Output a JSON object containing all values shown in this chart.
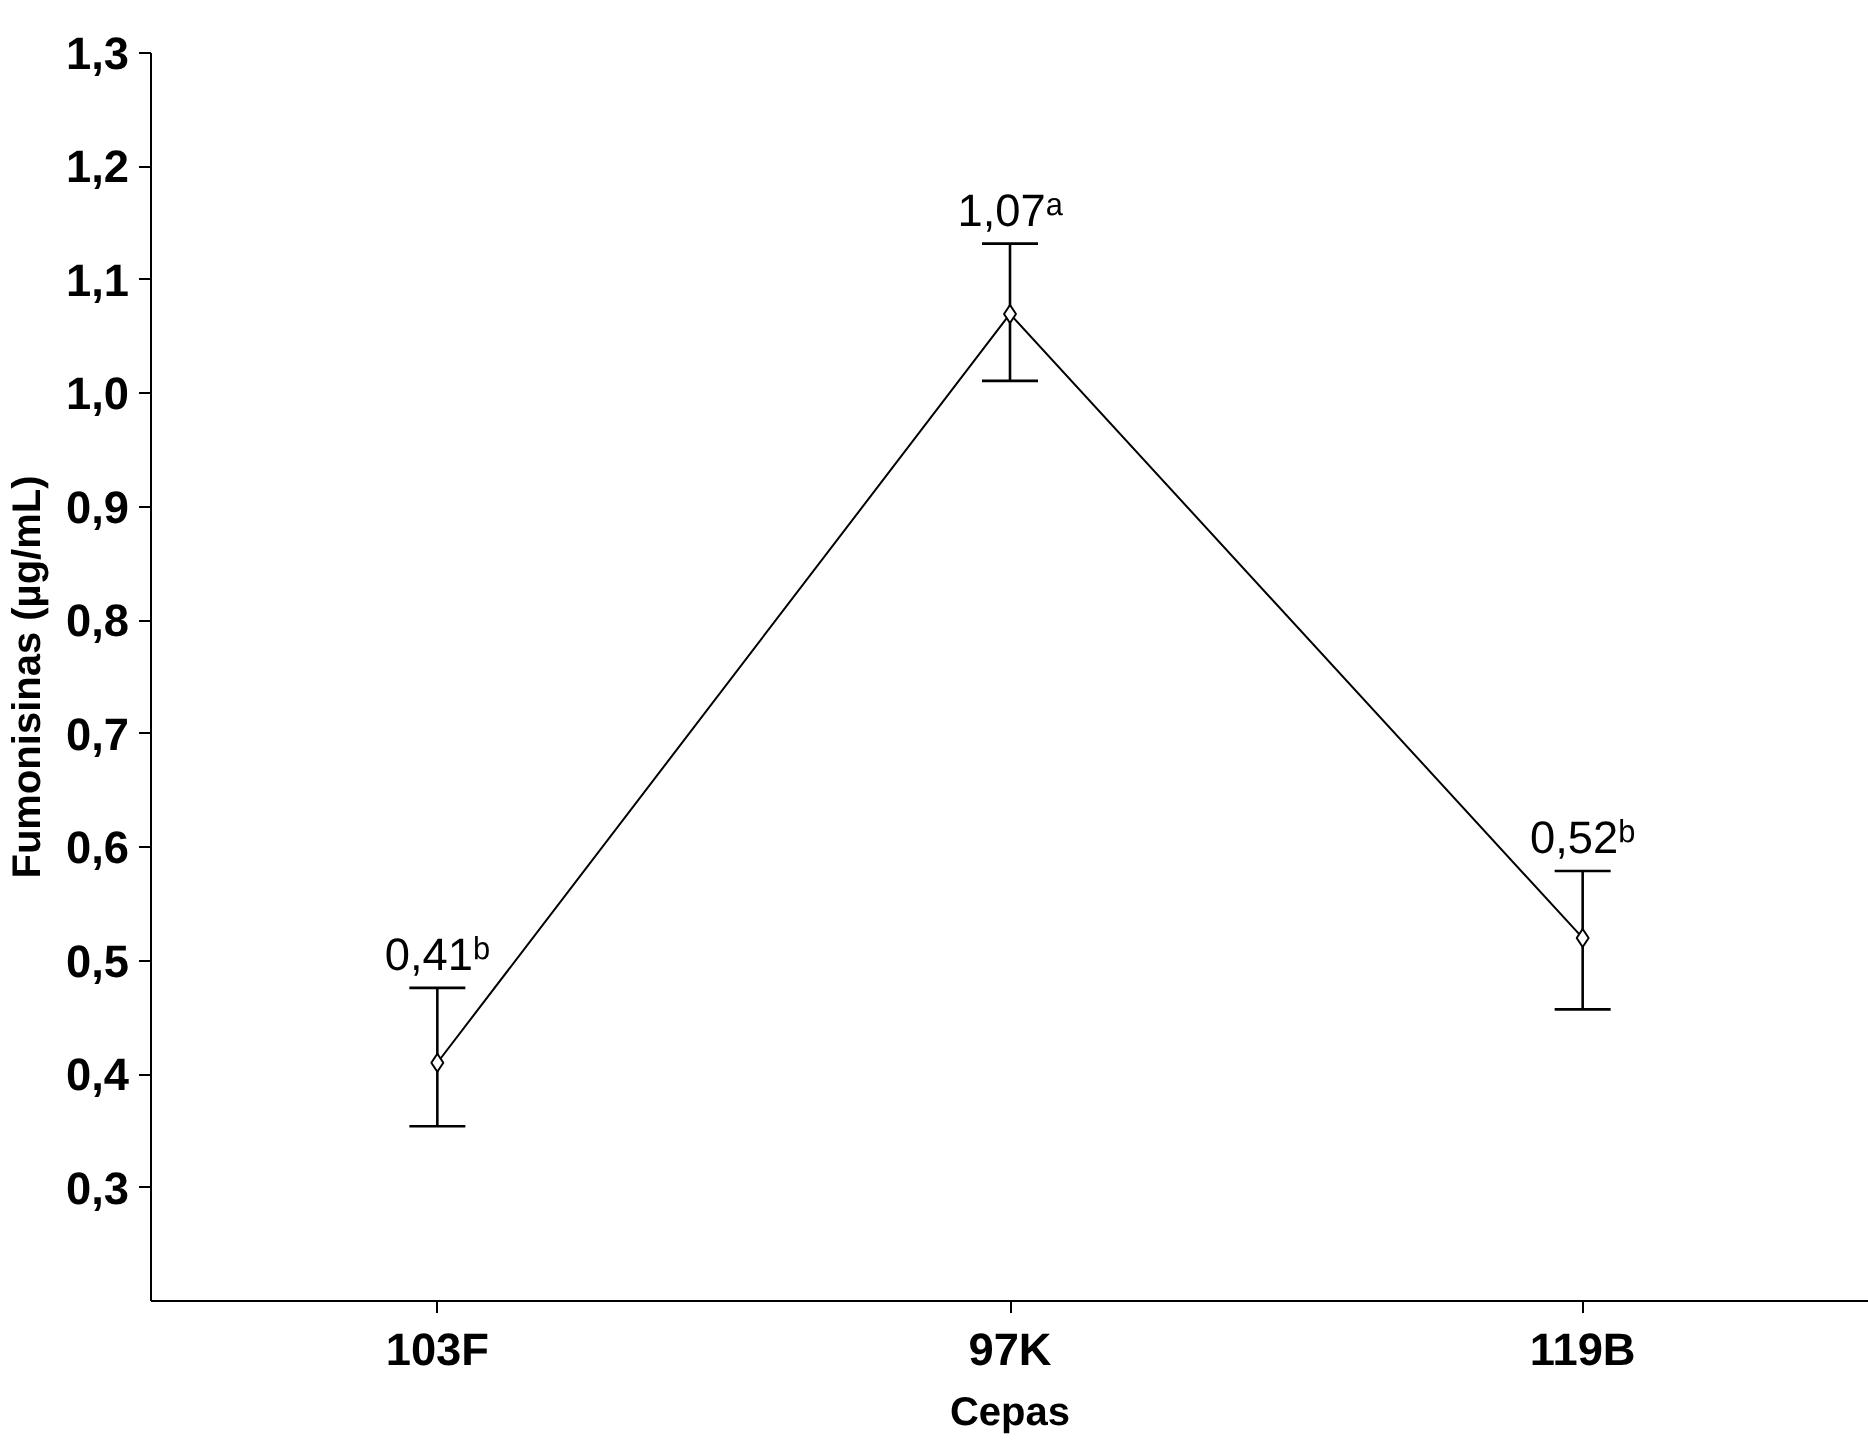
{
  "chart_data": {
    "type": "line",
    "xlabel": "Cepas",
    "ylabel": "Fumonisinas (µg/mL)",
    "categories": [
      "103F",
      "97K",
      "119B"
    ],
    "series": [
      {
        "color": "#000000",
        "values": [
          0.41,
          1.07,
          0.52
        ],
        "errors": [
          [
            0.354,
            0.476
          ],
          [
            1.011,
            1.132
          ],
          [
            0.457,
            0.579
          ]
        ],
        "value_labels": [
          "0,41ᵇ",
          "1,07ᵃ",
          "0,52ᵇ"
        ]
      }
    ],
    "ylim": [
      0.2,
      1.3
    ],
    "yticks": [
      {
        "value": 0.3,
        "label": "0,3"
      },
      {
        "value": 0.4,
        "label": "0,4"
      },
      {
        "value": 0.5,
        "label": "0,5"
      },
      {
        "value": 0.6,
        "label": "0,6"
      },
      {
        "value": 0.7,
        "label": "0,7"
      },
      {
        "value": 0.8,
        "label": "0,8"
      },
      {
        "value": 0.9,
        "label": "0,9"
      },
      {
        "value": 1.0,
        "label": "1,0"
      },
      {
        "value": 1.1,
        "label": "1,1"
      },
      {
        "value": 1.2,
        "label": "1,2"
      },
      {
        "value": 1.3,
        "label": "1,3"
      }
    ],
    "grid": false,
    "marker": "diamond",
    "line_style": "solid"
  }
}
